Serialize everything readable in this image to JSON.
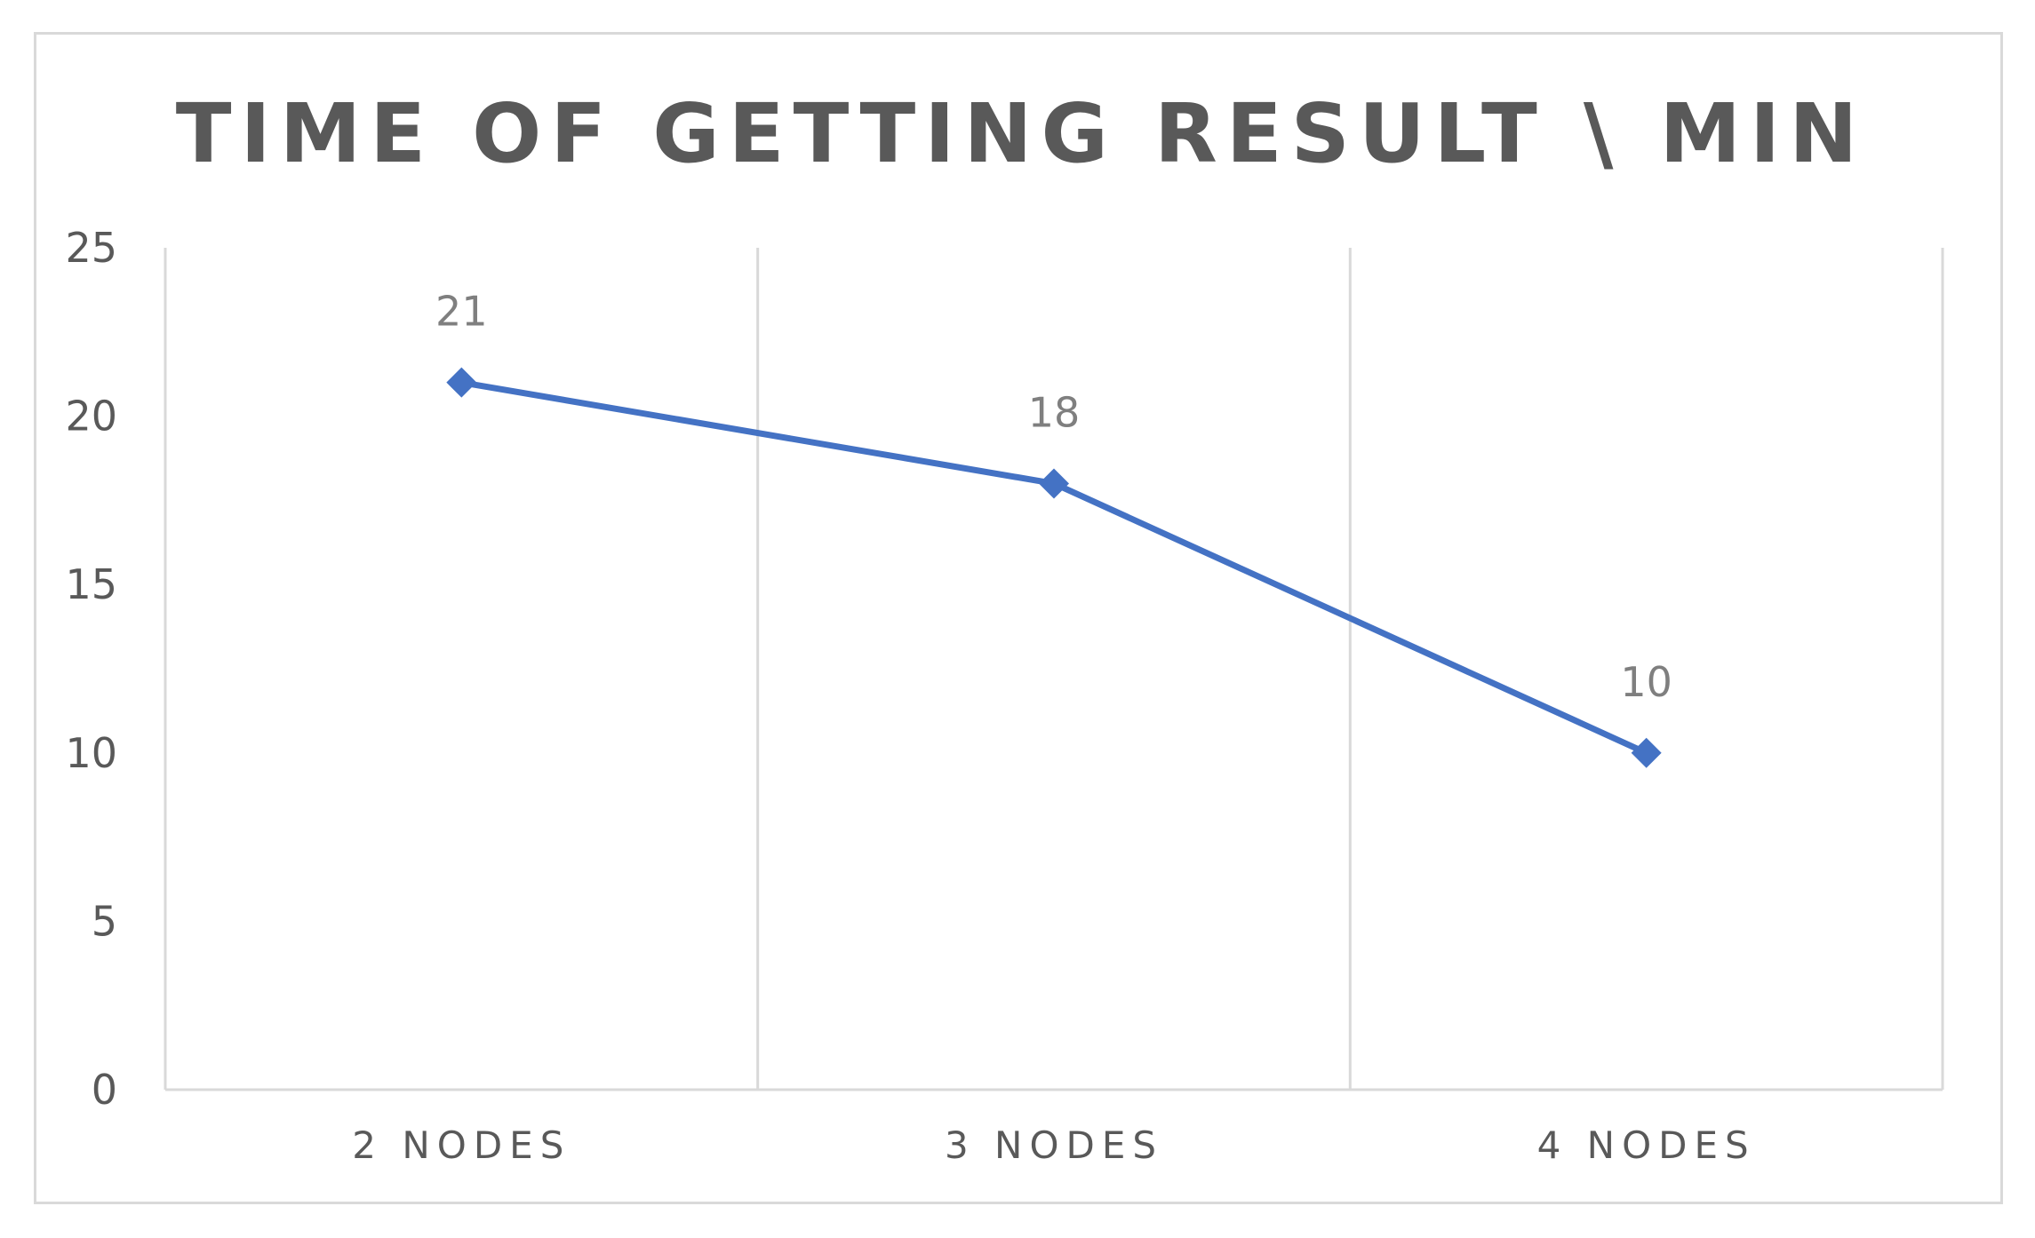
{
  "chart_data": {
    "type": "line",
    "title": "TIME OF GETTING RESULT \\ MIN",
    "categories": [
      "2 NODES",
      "3 NODES",
      "4 NODES"
    ],
    "series": [
      {
        "values": [
          21,
          18,
          10
        ],
        "color": "#4472c4"
      }
    ],
    "ylim": [
      0,
      25
    ],
    "yticks": [
      0,
      5,
      10,
      15,
      20,
      25
    ],
    "grid": "vertical",
    "legend": "none",
    "data_labels": true,
    "marker": "diamond"
  }
}
